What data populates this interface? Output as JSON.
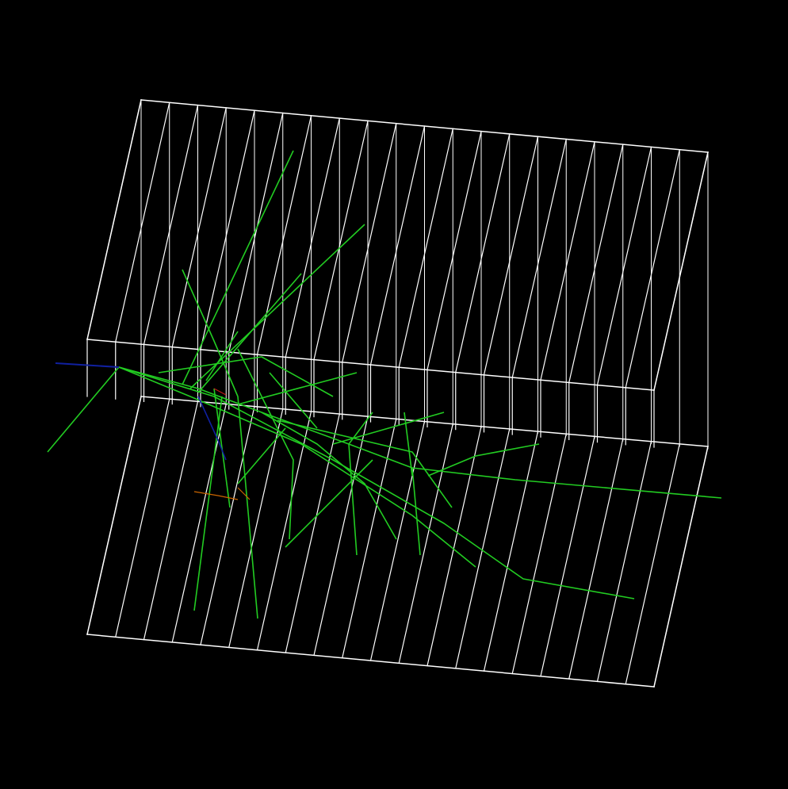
{
  "scene": {
    "description_visible_text": "",
    "colors": {
      "background": "#000000",
      "detector_frame": "#ffffff",
      "charged_tracks": "#22cc22",
      "primary_beam": "#1020a0",
      "secondary_particles": "#cc6600",
      "minor_hits": "#c01818"
    },
    "detector": {
      "layer_count": 20
    }
  }
}
